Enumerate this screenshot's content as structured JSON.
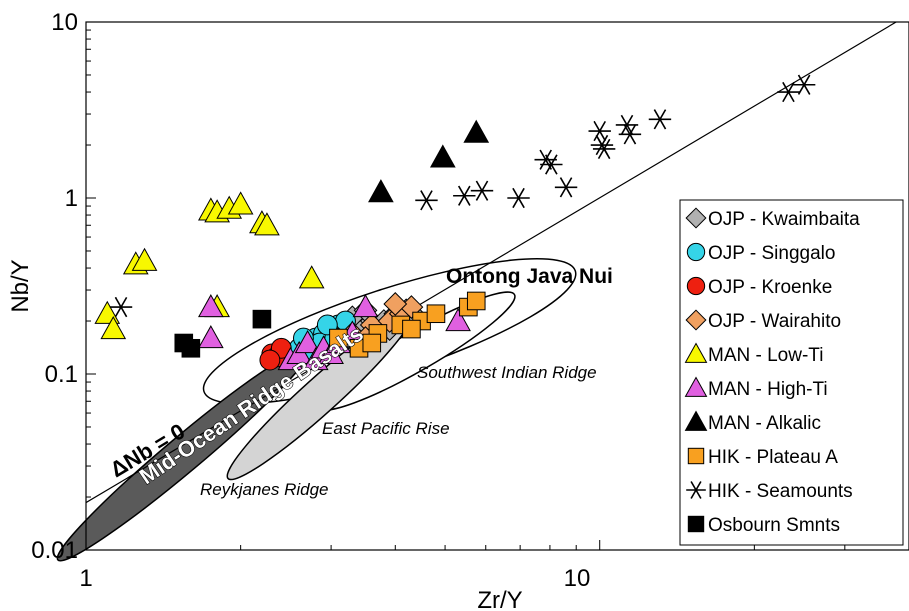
{
  "chart_data": {
    "type": "scatter",
    "xlabel": "Zr/Y",
    "ylabel": "Nb/Y",
    "x_scale": "log",
    "y_scale": "log",
    "xlim": [
      1,
      40
    ],
    "ylim": [
      0.01,
      10
    ],
    "x_ticks": [
      "1",
      "10"
    ],
    "y_ticks": [
      "0.01",
      "0.1",
      "1",
      "10"
    ],
    "grid": false,
    "legend_position": "right",
    "reference_line": {
      "label": "ΔNb = 0",
      "points": [
        [
          1,
          0.0186
        ],
        [
          40,
          11.05
        ]
      ]
    },
    "regions": [
      {
        "name": "Ontong Java Nui",
        "label": "Ontong Java Nui",
        "fill": "#ffffff",
        "center": [
          3.9,
          0.175
        ],
        "log_half_widths": [
          0.38,
          0.24
        ],
        "angle_deg": 18
      },
      {
        "name": "Southwest Indian Ridge",
        "label": "Southwest Indian Ridge",
        "fill": "#ffffff",
        "center": [
          4.4,
          0.135
        ],
        "log_half_widths": [
          0.22,
          0.11
        ],
        "angle_deg": 30
      },
      {
        "name": "East Pacific Rise",
        "label": "East Pacific Rise",
        "fill": "#d4d4d4",
        "center": [
          2.85,
          0.075
        ],
        "log_half_widths": [
          0.24,
          0.1
        ],
        "angle_deg": 42
      },
      {
        "name": "Reykjanes Ridge",
        "label": "Reykjanes Ridge",
        "fill": "#5a5a5a",
        "center": [
          1.55,
          0.035
        ],
        "log_half_widths": [
          0.32,
          0.1
        ],
        "angle_deg": 40
      }
    ],
    "region_labels": {
      "mor_basalts": "Mid-Ocean Ridge Basalts"
    },
    "series": [
      {
        "name": "OJP - Kwaimbaita",
        "marker": "diamond",
        "color": "#b0b0b0",
        "points": [
          [
            3.0,
            0.18
          ],
          [
            3.2,
            0.19
          ],
          [
            3.4,
            0.18
          ],
          [
            3.6,
            0.2
          ],
          [
            3.8,
            0.2
          ],
          [
            4.0,
            0.22
          ],
          [
            4.2,
            0.23
          ],
          [
            3.3,
            0.21
          ],
          [
            3.9,
            0.18
          ],
          [
            4.4,
            0.21
          ],
          [
            3.5,
            0.23
          ]
        ]
      },
      {
        "name": "OJP - Singgalo",
        "marker": "circle",
        "color": "#35d4e8",
        "points": [
          [
            2.6,
            0.14
          ],
          [
            2.7,
            0.15
          ],
          [
            2.8,
            0.16
          ],
          [
            2.9,
            0.17
          ],
          [
            3.0,
            0.18
          ],
          [
            3.1,
            0.19
          ],
          [
            2.75,
            0.135
          ],
          [
            2.85,
            0.15
          ],
          [
            3.05,
            0.16
          ],
          [
            3.2,
            0.2
          ],
          [
            2.65,
            0.16
          ],
          [
            2.95,
            0.19
          ]
        ]
      },
      {
        "name": "OJP - Kroenke",
        "marker": "circle",
        "color": "#ee2010",
        "points": [
          [
            2.3,
            0.13
          ],
          [
            2.35,
            0.125
          ],
          [
            2.4,
            0.14
          ],
          [
            2.28,
            0.12
          ]
        ]
      },
      {
        "name": "OJP - Wairahito",
        "marker": "diamond",
        "color": "#f0a060",
        "points": [
          [
            3.3,
            0.17
          ],
          [
            3.6,
            0.19
          ],
          [
            3.9,
            0.2
          ],
          [
            4.1,
            0.22
          ],
          [
            4.3,
            0.24
          ],
          [
            3.5,
            0.16
          ],
          [
            4.0,
            0.25
          ]
        ]
      },
      {
        "name": "MAN - Low-Ti",
        "marker": "triangle",
        "color": "#f8f800",
        "points": [
          [
            1.1,
            0.22
          ],
          [
            1.13,
            0.18
          ],
          [
            1.25,
            0.42
          ],
          [
            1.3,
            0.44
          ],
          [
            1.75,
            0.85
          ],
          [
            1.8,
            0.83
          ],
          [
            1.9,
            0.87
          ],
          [
            2.0,
            0.92
          ],
          [
            2.2,
            0.72
          ],
          [
            2.25,
            0.7
          ],
          [
            2.75,
            0.35
          ],
          [
            1.8,
            0.24
          ]
        ]
      },
      {
        "name": "MAN - High-Ti",
        "marker": "triangle",
        "color": "#e060e0",
        "points": [
          [
            1.75,
            0.24
          ],
          [
            1.75,
            0.16
          ],
          [
            2.5,
            0.12
          ],
          [
            2.6,
            0.13
          ],
          [
            2.7,
            0.15
          ],
          [
            2.8,
            0.12
          ],
          [
            2.9,
            0.14
          ],
          [
            3.0,
            0.13
          ],
          [
            3.1,
            0.15
          ],
          [
            3.3,
            0.17
          ],
          [
            3.5,
            0.24
          ],
          [
            5.3,
            0.2
          ]
        ]
      },
      {
        "name": "MAN - Alkalic",
        "marker": "triangle",
        "color": "#000000",
        "points": [
          [
            3.75,
            1.08
          ],
          [
            4.95,
            1.7
          ],
          [
            5.75,
            2.35
          ]
        ]
      },
      {
        "name": "HIK - Plateau A",
        "marker": "square",
        "color": "#f8a020",
        "points": [
          [
            3.1,
            0.16
          ],
          [
            3.4,
            0.14
          ],
          [
            3.7,
            0.17
          ],
          [
            4.1,
            0.19
          ],
          [
            4.5,
            0.2
          ],
          [
            4.8,
            0.22
          ],
          [
            5.55,
            0.24
          ],
          [
            5.75,
            0.26
          ],
          [
            3.6,
            0.15
          ],
          [
            4.3,
            0.18
          ]
        ]
      },
      {
        "name": "HIK - Seamounts",
        "marker": "asterisk",
        "color": "#000000",
        "points": [
          [
            1.17,
            0.24
          ],
          [
            4.6,
            0.97
          ],
          [
            5.45,
            1.03
          ],
          [
            5.9,
            1.1
          ],
          [
            6.95,
            1.0
          ],
          [
            7.85,
            1.65
          ],
          [
            8.05,
            1.55
          ],
          [
            8.6,
            1.15
          ],
          [
            10.0,
            2.4
          ],
          [
            10.1,
            2.0
          ],
          [
            10.2,
            1.9
          ],
          [
            11.3,
            2.6
          ],
          [
            11.45,
            2.3
          ],
          [
            13.1,
            2.8
          ],
          [
            23.3,
            4.0
          ],
          [
            25.0,
            4.4
          ]
        ]
      },
      {
        "name": "Osbourn Smnts",
        "marker": "square",
        "color": "#000000",
        "points": [
          [
            1.55,
            0.15
          ],
          [
            1.6,
            0.14
          ],
          [
            2.2,
            0.205
          ]
        ]
      }
    ],
    "annotations": {
      "ontong": "Ontong Java Nui",
      "swir": "Southwest Indian Ridge",
      "epr": "East Pacific Rise",
      "reykjanes": "Reykjanes Ridge",
      "dnb": "ΔNb = 0"
    }
  }
}
